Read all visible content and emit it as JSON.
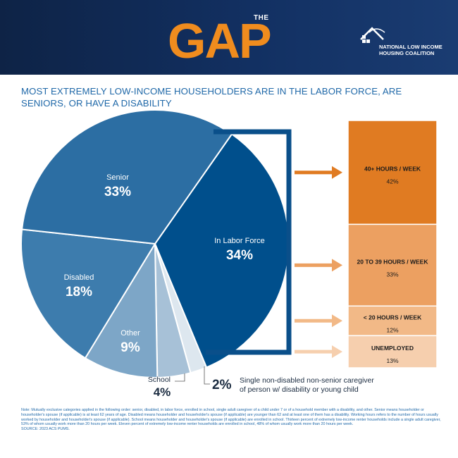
{
  "header": {
    "logo_small": "THE",
    "logo_big": "GAP",
    "org_line1": "NATIONAL LOW INCOME",
    "org_line2": "HOUSING COALITION"
  },
  "headline": "MOST EXTREMELY LOW-INCOME HOUSEHOLDERS ARE IN THE LABOR FORCE, ARE SENIORS, OR HAVE A DISABILITY",
  "chart_data": [
    {
      "type": "pie",
      "slices": [
        {
          "label": "In Labor Force",
          "value": 34,
          "value_text": "34%",
          "color": "#004f8c"
        },
        {
          "label": "",
          "value": 2,
          "value_text": "2%",
          "color": "#dde7ef"
        },
        {
          "label": "School",
          "value": 4,
          "value_text": "4%",
          "color": "#a7c1d7"
        },
        {
          "label": "Other",
          "value": 9,
          "value_text": "9%",
          "color": "#7da6c7"
        },
        {
          "label": "Disabled",
          "value": 18,
          "value_text": "18%",
          "color": "#3d7cad"
        },
        {
          "label": "Senior",
          "value": 33,
          "value_text": "33%",
          "color": "#2c6ea3"
        }
      ],
      "callout": {
        "value_text": "2%",
        "line1": "Single non-disabled non-senior caregiver",
        "line2": "of person w/ disability or young child"
      }
    },
    {
      "type": "bar",
      "stacked": true,
      "parent": "In Labor Force",
      "categories": [
        "40+ HOURS / WEEK",
        "20 TO 39 HOURS / WEEK",
        "< 20 HOURS / WEEK",
        "UNEMPLOYED"
      ],
      "values": [
        42,
        33,
        12,
        13
      ],
      "value_texts": [
        "42%",
        "33%",
        "12%",
        "13%"
      ],
      "colors": [
        "#e07b22",
        "#eca061",
        "#f2b987",
        "#f6cfae"
      ]
    }
  ],
  "note": "Note: Mutually exclusive categories applied in the following order: senior, disabled, in labor force, enrolled in school, single adult caregiver of a child under 7 or of a household member with a disability, and other. Senior means householder or householder's spouse (if applicable) is at least 62 years of age. Disabled means householder and householder's spouse (if applicable) are younger than 62 and at least one of them has a disability. Working hours refers to the number of hours usually worked by householder and householder's spouse (if applicable). School means householder and householder's spouse (if applicable) are enrolled in school. Thirteen percent of extremely low-income renter households include a single adult caregiver, 53% of whom usually work more than 20 hours per week. Eleven percent of extremely low-income renter households are enrolled in school, 48% of whom usually work more than 20 hours per week.",
  "source": "SOURCE: 2023 ACS PUMS."
}
